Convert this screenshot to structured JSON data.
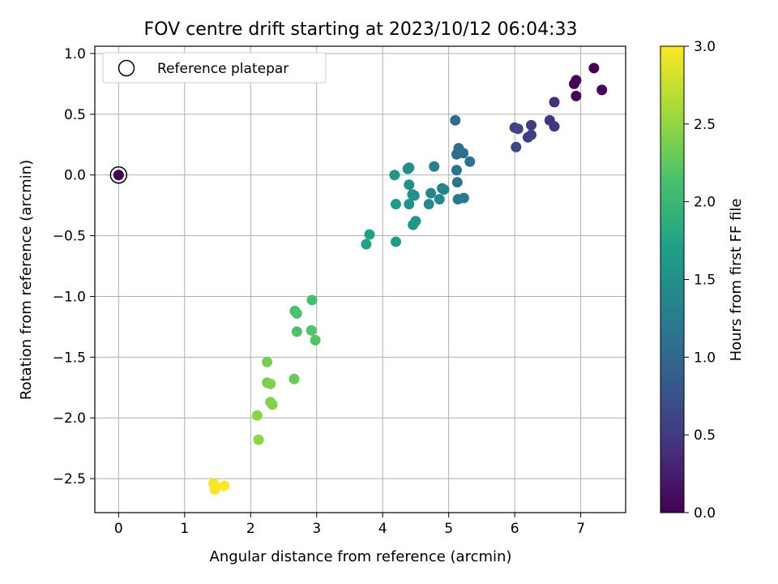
{
  "chart_data": {
    "type": "scatter",
    "title": "FOV centre drift starting at 2023/10/12 06:04:33",
    "xlabel": "Angular distance from reference (arcmin)",
    "ylabel": "Rotation from reference (arcmin)",
    "xlim": [
      -0.36,
      7.68
    ],
    "ylim": [
      -2.78,
      1.06
    ],
    "xticks": [
      0,
      1,
      2,
      3,
      4,
      5,
      6,
      7
    ],
    "xtick_labels": [
      "0",
      "1",
      "2",
      "3",
      "4",
      "5",
      "6",
      "7"
    ],
    "yticks": [
      1.0,
      0.5,
      0.0,
      -0.5,
      -1.0,
      -1.5,
      -2.0,
      -2.5
    ],
    "ytick_labels": [
      "1.0",
      "0.5",
      "0.0",
      "−0.5",
      "−1.0",
      "−1.5",
      "−2.0",
      "−2.5"
    ],
    "grid": true,
    "legend": {
      "label": "Reference platepar",
      "position": "top-left"
    },
    "colorbar": {
      "label": "Hours from first FF file",
      "range": [
        0.0,
        3.0
      ],
      "ticks": [
        0.0,
        0.5,
        1.0,
        1.5,
        2.0,
        2.5,
        3.0
      ],
      "tick_labels": [
        "0.0",
        "0.5",
        "1.0",
        "1.5",
        "2.0",
        "2.5",
        "3.0"
      ],
      "colormap": "viridis"
    },
    "reference_point": {
      "x": 0,
      "y": 0,
      "c": 0.0
    },
    "points": [
      {
        "x": 7.2,
        "y": 0.88,
        "c": 0.0
      },
      {
        "x": 6.9,
        "y": 0.75,
        "c": 0.02
      },
      {
        "x": 6.93,
        "y": 0.78,
        "c": 0.03
      },
      {
        "x": 6.93,
        "y": 0.65,
        "c": 0.04
      },
      {
        "x": 7.32,
        "y": 0.7,
        "c": 0.05
      },
      {
        "x": 6.6,
        "y": 0.6,
        "c": 0.4
      },
      {
        "x": 6.53,
        "y": 0.45,
        "c": 0.45
      },
      {
        "x": 6.6,
        "y": 0.4,
        "c": 0.48
      },
      {
        "x": 6.25,
        "y": 0.41,
        "c": 0.5
      },
      {
        "x": 6.2,
        "y": 0.31,
        "c": 0.52
      },
      {
        "x": 6.25,
        "y": 0.33,
        "c": 0.55
      },
      {
        "x": 6.0,
        "y": 0.39,
        "c": 0.58
      },
      {
        "x": 6.05,
        "y": 0.38,
        "c": 0.6
      },
      {
        "x": 6.02,
        "y": 0.23,
        "c": 0.62
      },
      {
        "x": 5.1,
        "y": 0.45,
        "c": 1.0
      },
      {
        "x": 5.15,
        "y": 0.22,
        "c": 1.05
      },
      {
        "x": 5.12,
        "y": 0.17,
        "c": 1.08
      },
      {
        "x": 5.22,
        "y": 0.18,
        "c": 1.1
      },
      {
        "x": 5.32,
        "y": 0.11,
        "c": 1.12
      },
      {
        "x": 5.12,
        "y": 0.04,
        "c": 1.15
      },
      {
        "x": 5.13,
        "y": -0.06,
        "c": 1.18
      },
      {
        "x": 5.14,
        "y": -0.2,
        "c": 1.2
      },
      {
        "x": 5.23,
        "y": -0.19,
        "c": 1.22
      },
      {
        "x": 4.78,
        "y": 0.07,
        "c": 1.3
      },
      {
        "x": 4.9,
        "y": -0.11,
        "c": 1.33
      },
      {
        "x": 4.93,
        "y": -0.12,
        "c": 1.35
      },
      {
        "x": 4.73,
        "y": -0.15,
        "c": 1.38
      },
      {
        "x": 4.86,
        "y": -0.2,
        "c": 1.4
      },
      {
        "x": 4.7,
        "y": -0.24,
        "c": 1.42
      },
      {
        "x": 4.4,
        "y": 0.06,
        "c": 1.45
      },
      {
        "x": 4.38,
        "y": 0.05,
        "c": 1.46
      },
      {
        "x": 4.4,
        "y": -0.08,
        "c": 1.48
      },
      {
        "x": 4.45,
        "y": -0.16,
        "c": 1.5
      },
      {
        "x": 4.48,
        "y": -0.17,
        "c": 1.52
      },
      {
        "x": 4.4,
        "y": -0.24,
        "c": 1.54
      },
      {
        "x": 4.5,
        "y": -0.38,
        "c": 1.56
      },
      {
        "x": 4.46,
        "y": -0.41,
        "c": 1.58
      },
      {
        "x": 4.18,
        "y": 0.0,
        "c": 1.6
      },
      {
        "x": 4.2,
        "y": -0.24,
        "c": 1.62
      },
      {
        "x": 4.2,
        "y": -0.55,
        "c": 1.65
      },
      {
        "x": 3.8,
        "y": -0.49,
        "c": 1.7
      },
      {
        "x": 3.75,
        "y": -0.57,
        "c": 1.72
      },
      {
        "x": 2.93,
        "y": -1.03,
        "c": 2.1
      },
      {
        "x": 2.67,
        "y": -1.12,
        "c": 2.12
      },
      {
        "x": 2.7,
        "y": -1.14,
        "c": 2.14
      },
      {
        "x": 2.7,
        "y": -1.29,
        "c": 2.16
      },
      {
        "x": 2.92,
        "y": -1.28,
        "c": 2.18
      },
      {
        "x": 2.98,
        "y": -1.36,
        "c": 2.2
      },
      {
        "x": 2.25,
        "y": -1.54,
        "c": 2.35
      },
      {
        "x": 2.66,
        "y": -1.68,
        "c": 2.3
      },
      {
        "x": 2.25,
        "y": -1.71,
        "c": 2.38
      },
      {
        "x": 2.3,
        "y": -1.72,
        "c": 2.4
      },
      {
        "x": 2.3,
        "y": -1.87,
        "c": 2.42
      },
      {
        "x": 2.33,
        "y": -1.89,
        "c": 2.44
      },
      {
        "x": 2.1,
        "y": -1.98,
        "c": 2.46
      },
      {
        "x": 2.12,
        "y": -2.18,
        "c": 2.48
      },
      {
        "x": 1.44,
        "y": -2.54,
        "c": 2.95
      },
      {
        "x": 1.47,
        "y": -2.57,
        "c": 2.97
      },
      {
        "x": 1.46,
        "y": -2.59,
        "c": 2.98
      },
      {
        "x": 1.6,
        "y": -2.56,
        "c": 3.0
      }
    ]
  }
}
